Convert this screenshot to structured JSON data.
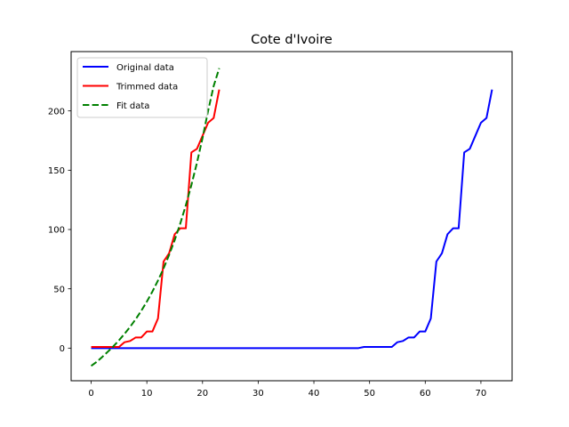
{
  "chart_data": {
    "type": "line",
    "title": "Cote d'Ivoire",
    "xlabel": "",
    "ylabel": "",
    "xlim": [
      -3.6,
      75.6
    ],
    "ylim": [
      -27.5,
      250
    ],
    "xticks": [
      0,
      10,
      20,
      30,
      40,
      50,
      60,
      70
    ],
    "yticks": [
      0,
      50,
      100,
      150,
      200
    ],
    "grid": false,
    "legend_position": "top-left",
    "series": [
      {
        "name": "Original data",
        "color": "#0000ff",
        "style": "solid",
        "x": [
          0,
          48,
          49,
          54,
          55,
          56,
          57,
          58,
          59,
          60,
          61,
          62,
          63,
          64,
          65,
          66,
          67,
          68,
          69,
          70,
          71,
          72
        ],
        "y": [
          0,
          0,
          1,
          1,
          5,
          6,
          9,
          9,
          14,
          14,
          25,
          73,
          80,
          96,
          101,
          101,
          165,
          168,
          179,
          190,
          194,
          218
        ]
      },
      {
        "name": "Trimmed data",
        "color": "#ff0000",
        "style": "solid",
        "x": [
          0,
          1,
          2,
          3,
          4,
          5,
          6,
          7,
          8,
          9,
          10,
          11,
          12,
          13,
          14,
          15,
          16,
          17,
          18,
          19,
          20,
          21,
          22,
          23
        ],
        "y": [
          1,
          1,
          1,
          1,
          1,
          1,
          5,
          6,
          9,
          9,
          14,
          14,
          25,
          73,
          80,
          96,
          101,
          101,
          165,
          168,
          179,
          190,
          194,
          218
        ]
      },
      {
        "name": "Fit data",
        "color": "#008000",
        "style": "dashed",
        "x": [
          0,
          1,
          2,
          3,
          4,
          5,
          6,
          7,
          8,
          9,
          10,
          11,
          12,
          13,
          14,
          15,
          16,
          17,
          18,
          19,
          20,
          21,
          22,
          23
        ],
        "y": [
          -15.0,
          -11.6,
          -7.4,
          -3.0,
          1.6,
          6.6,
          12.1,
          18.0,
          24.4,
          31.5,
          39.2,
          47.7,
          57.0,
          67.2,
          78.6,
          91.1,
          105.0,
          120.4,
          137.5,
          156.3,
          177.1,
          200.0,
          221.0,
          236.0
        ]
      }
    ]
  }
}
